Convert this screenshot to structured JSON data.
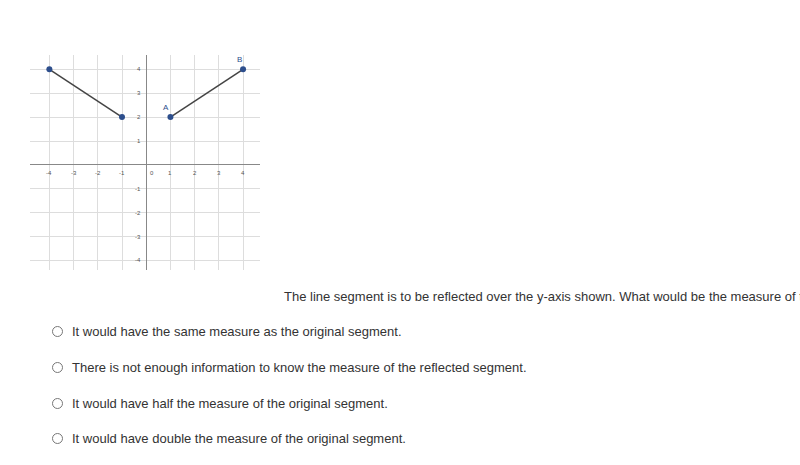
{
  "chart_data": {
    "type": "scatter",
    "series": [
      {
        "x": [
          -4,
          -1
        ],
        "y": [
          4,
          2
        ]
      },
      {
        "x": [
          1,
          4
        ],
        "y": [
          2,
          4
        ]
      }
    ],
    "color": "#444444",
    "marker": "circle",
    "marker_color": "#2d4e8c",
    "annotations": [
      {
        "text": "A",
        "x": 1,
        "y": 2
      },
      {
        "text": "B",
        "x": 4,
        "y": 4
      }
    ],
    "xlim": [
      -4.8,
      4.7
    ],
    "ylim": [
      -4.4,
      4.6
    ],
    "xticks": [
      -4,
      -3,
      -2,
      -1,
      0,
      1,
      2,
      3,
      4
    ],
    "yticks": [
      -4,
      -3,
      -2,
      -1,
      1,
      2,
      3,
      4
    ],
    "grid": true
  },
  "question": "The line segment is to be reflected over the y-axis shown. What would be the measure of the reflected segment?",
  "options": [
    "It would have the same measure as the original segment.",
    "There is not enough information to know the measure of the reflected segment.",
    "It would have half the measure of the original segment.",
    "It would have double the measure of the original segment."
  ]
}
